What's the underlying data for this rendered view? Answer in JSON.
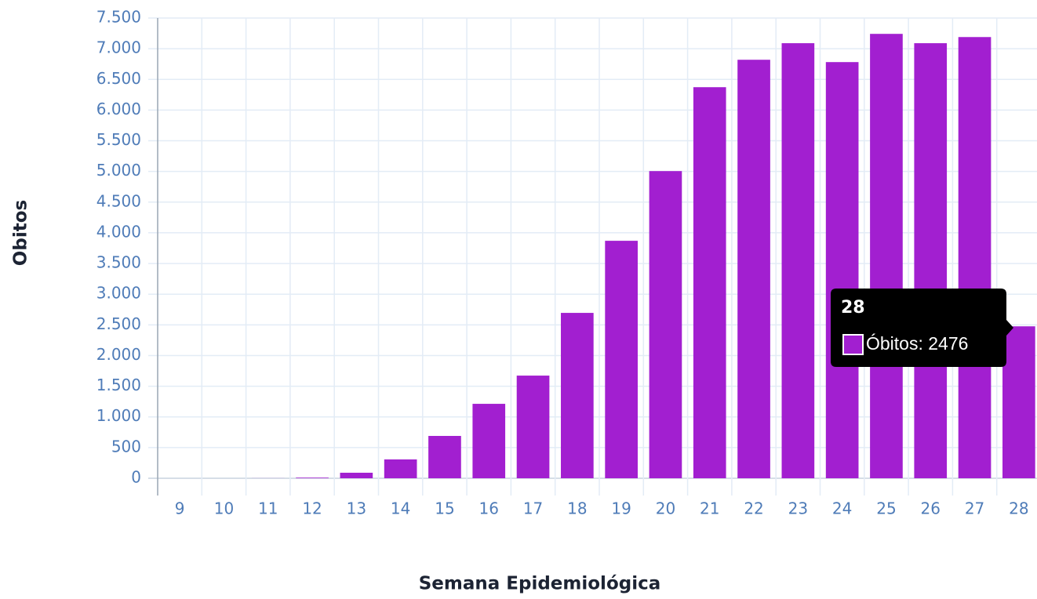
{
  "chart_data": {
    "type": "bar",
    "x_label": "Semana Epidemiológica",
    "y_label": "Obitos",
    "categories": [
      "9",
      "10",
      "11",
      "12",
      "13",
      "14",
      "15",
      "16",
      "17",
      "18",
      "19",
      "20",
      "21",
      "22",
      "23",
      "24",
      "25",
      "26",
      "27",
      "28"
    ],
    "series": [
      {
        "name": "Óbitos",
        "color": "#a21fd0",
        "values": [
          0,
          0,
          1,
          10,
          90,
          307,
          690,
          1213,
          1673,
          2695,
          3870,
          5006,
          6373,
          6820,
          7090,
          6782,
          7242,
          7090,
          7190,
          2476
        ]
      }
    ],
    "ylim": [
      0,
      7500
    ],
    "yticks": [
      0,
      500,
      {
        "value": 1000,
        "label": "1.000"
      },
      {
        "value": 1500,
        "label": "1.500"
      },
      {
        "value": 2000,
        "label": "2.000"
      },
      {
        "value": 2500,
        "label": "2.500"
      },
      {
        "value": 3000,
        "label": "3.000"
      },
      {
        "value": 3500,
        "label": "3.500"
      },
      {
        "value": 4000,
        "label": "4.000"
      },
      {
        "value": 4500,
        "label": "4.500"
      },
      {
        "value": 5000,
        "label": "5.000"
      },
      {
        "value": 5500,
        "label": "5.500"
      },
      {
        "value": 6000,
        "label": "6.000"
      },
      {
        "value": 6500,
        "label": "6.500"
      },
      {
        "value": 7000,
        "label": "7.000"
      },
      {
        "value": 7500,
        "label": "7.500"
      }
    ],
    "grid": true,
    "tooltip": {
      "title": "28",
      "label": "Óbitos: 2476"
    }
  }
}
